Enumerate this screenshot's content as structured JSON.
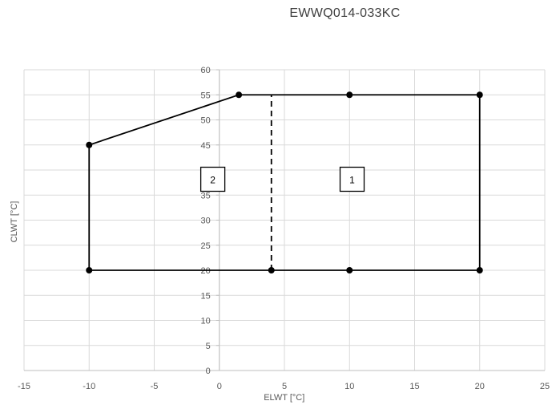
{
  "chart_data": {
    "type": "line",
    "title": "EWWQ014-033KC",
    "xlabel": "ELWT [°C]",
    "ylabel": "CLWT [°C]",
    "xlim": [
      -15,
      25
    ],
    "ylim": [
      0,
      60
    ],
    "xticks": [
      "-15",
      "-10",
      "-5",
      "0",
      "5",
      "10",
      "15",
      "20",
      "25"
    ],
    "yticks": [
      "0",
      "5",
      "10",
      "15",
      "20",
      "25",
      "30",
      "35",
      "40",
      "45",
      "50",
      "55",
      "60"
    ],
    "grid": true,
    "series": [
      {
        "style": "solid",
        "markers": true,
        "x": [
          -10,
          4,
          10,
          20,
          20,
          10,
          1.5,
          -10,
          -10
        ],
        "y": [
          20,
          20,
          20,
          20,
          55,
          55,
          55,
          45,
          20
        ]
      },
      {
        "style": "dashed",
        "markers": false,
        "x": [
          4,
          4
        ],
        "y": [
          20,
          55
        ]
      }
    ],
    "annotations": [
      {
        "text": "2",
        "x": -0.5,
        "y": 38
      },
      {
        "text": "1",
        "x": 10.2,
        "y": 38
      }
    ]
  }
}
